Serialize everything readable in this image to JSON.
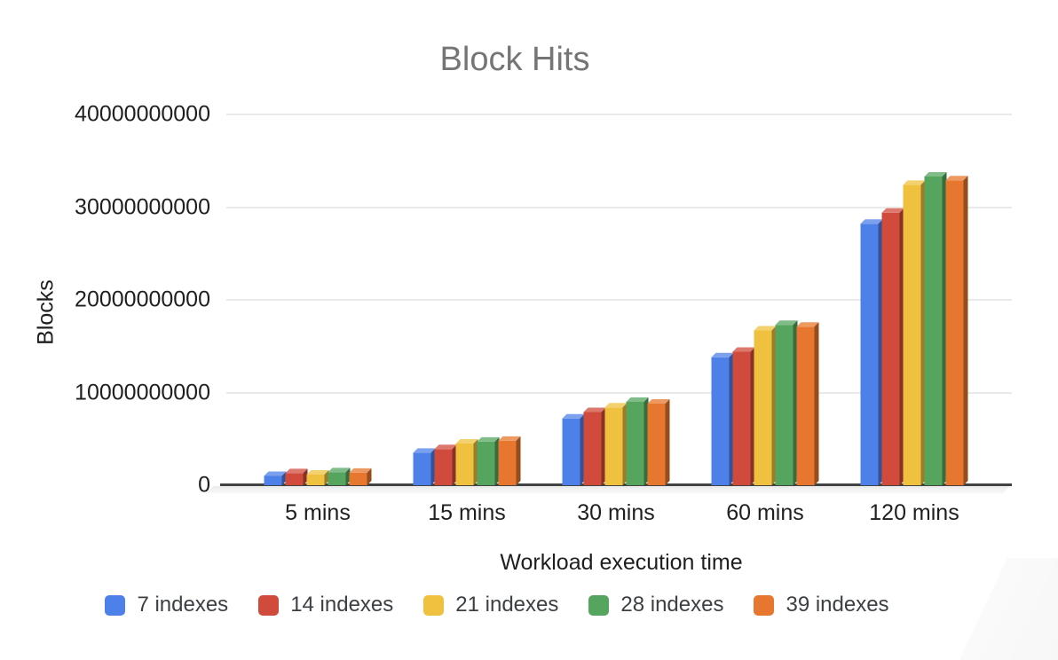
{
  "y_axis": {
    "tick_labels": [
      "40000000000",
      "30000000000",
      "20000000000",
      "10000000000",
      "0"
    ]
  },
  "chart_data": {
    "type": "bar",
    "effect": "3d",
    "title": "Block Hits",
    "xlabel": "Workload execution time",
    "ylabel": "Blocks",
    "categories": [
      "5 mins",
      "15 mins",
      "30 mins",
      "60 mins",
      "120 mins"
    ],
    "series": [
      {
        "name": "7 indexes",
        "color": "#4D80E8",
        "values": [
          1000000000,
          3500000000,
          7200000000,
          13800000000,
          28200000000
        ]
      },
      {
        "name": "14 indexes",
        "color": "#D14B3D",
        "values": [
          1300000000,
          3900000000,
          7900000000,
          14400000000,
          29400000000
        ]
      },
      {
        "name": "21 indexes",
        "color": "#EFC13F",
        "values": [
          1150000000,
          4500000000,
          8400000000,
          16700000000,
          32400000000
        ]
      },
      {
        "name": "28 indexes",
        "color": "#56A55F",
        "values": [
          1400000000,
          4700000000,
          9000000000,
          17300000000,
          33300000000
        ]
      },
      {
        "name": "39 indexes",
        "color": "#E7772E",
        "values": [
          1350000000,
          4800000000,
          8800000000,
          17100000000,
          32900000000
        ]
      }
    ],
    "ylim": [
      0,
      40000000000
    ],
    "grid": true,
    "legend_position": "bottom",
    "title_color": "#757575",
    "axis_text_color": "#1f1f1f",
    "legend_text_color": "#3c4043"
  }
}
